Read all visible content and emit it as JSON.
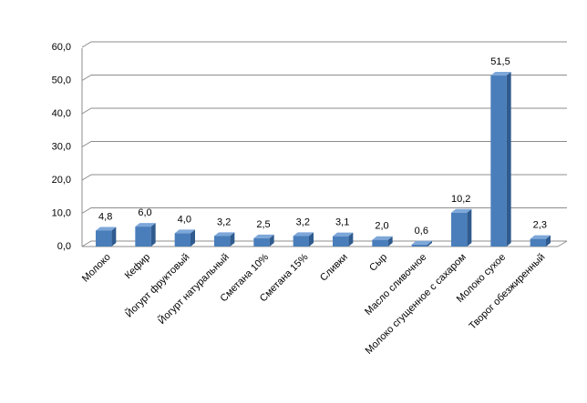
{
  "chart_data": {
    "type": "bar3d",
    "categories": [
      "Молоко",
      "Кефир",
      "Йогурт фруктовый",
      "Йогурт натуральный",
      "Сметана 10%",
      "Сметана 15%",
      "Сливки",
      "Сыр",
      "Масло сливочное",
      "Молоко сгущенное с сахаром",
      "Молоко сухое",
      "Творог обезжиренный"
    ],
    "values": [
      4.8,
      6.0,
      4.0,
      3.2,
      2.5,
      3.2,
      3.1,
      2.0,
      0.6,
      10.2,
      51.5,
      2.3
    ],
    "value_labels": [
      "4,8",
      "6,0",
      "4,0",
      "3,2",
      "2,5",
      "3,2",
      "3,1",
      "2,0",
      "0,6",
      "10,2",
      "51,5",
      "2,3"
    ],
    "color": "#4a7ebb",
    "ylim": [
      0,
      60
    ],
    "yticks": [
      {
        "value": 0,
        "label": "0,0"
      },
      {
        "value": 10,
        "label": "10,0"
      },
      {
        "value": 20,
        "label": "20,0"
      },
      {
        "value": 30,
        "label": "30,0"
      },
      {
        "value": 40,
        "label": "40,0"
      },
      {
        "value": 50,
        "label": "50,0"
      },
      {
        "value": 60,
        "label": "60,0"
      }
    ],
    "grid": true
  }
}
